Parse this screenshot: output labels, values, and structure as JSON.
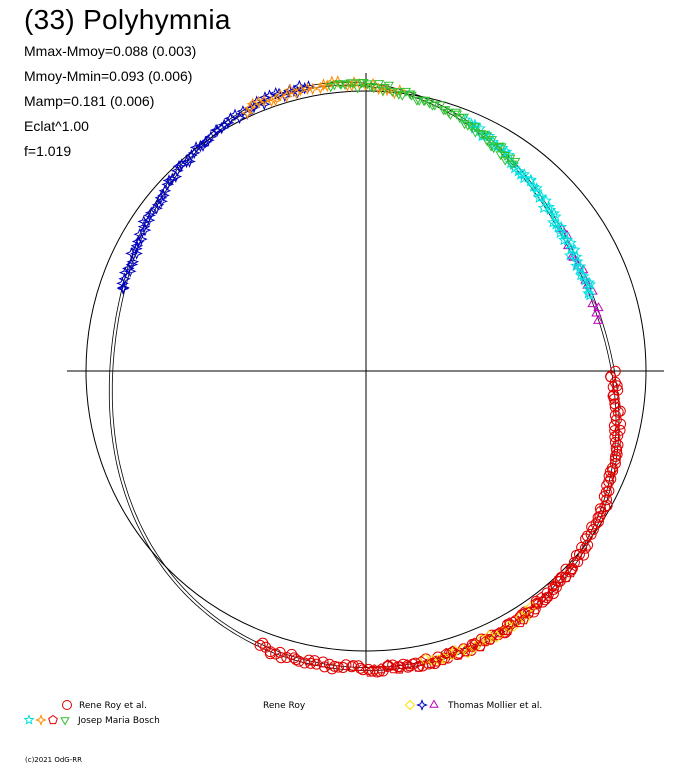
{
  "title": "(33) Polyhymnia",
  "stats": [
    "Mmax-Mmoy=0.088 (0.003)",
    "Mmoy-Mmin=0.093 (0.006)",
    "Mamp=0.181 (0.006)",
    "Eclat^1.00",
    "f=1.019"
  ],
  "legend": [
    {
      "label": "Rene Roy et al.",
      "symbols": [
        {
          "shape": "circle",
          "color": "#e00000"
        }
      ]
    },
    {
      "label": "Rene Roy",
      "symbols": []
    },
    {
      "label": "Thomas Mollier et al.",
      "symbols": [
        {
          "shape": "diamond",
          "color": "#ffe000"
        },
        {
          "shape": "star4",
          "color": "#0000c0"
        },
        {
          "shape": "triangle",
          "color": "#c000c0"
        }
      ]
    },
    {
      "label": "Josep Maria Bosch",
      "symbols": [
        {
          "shape": "star5",
          "color": "#00e0e0"
        },
        {
          "shape": "star4",
          "color": "#ff8c00"
        },
        {
          "shape": "pentagon",
          "color": "#e00000"
        },
        {
          "shape": "triangle-down",
          "color": "#30c030"
        }
      ]
    }
  ],
  "footer": "(c)2021 OdG-RR",
  "chart_data": {
    "type": "scatter",
    "title": "(33) Polyhymnia",
    "xlabel": "",
    "ylabel": "",
    "grid": false,
    "axes": "crosshair through center",
    "reference_circle": true,
    "legend_position": "bottom",
    "series": [
      {
        "name": "Rene Roy et al.",
        "marker": "circle",
        "color": "#e00000",
        "phase_range": [
          0.25,
          0.56
        ],
        "count": 160
      },
      {
        "name": "Thomas Mollier et al.",
        "marker": "diamond",
        "color": "#ffe000",
        "phase_range": [
          0.4,
          0.47
        ],
        "count": 20
      },
      {
        "name": "Thomas Mollier et al.",
        "marker": "star4",
        "color": "#0000c0",
        "phase_range": [
          0.8,
          0.97
        ],
        "count": 70
      },
      {
        "name": "Thomas Mollier et al.",
        "marker": "triangle",
        "color": "#c000c0",
        "phase_range": [
          0.15,
          0.22
        ],
        "count": 14
      },
      {
        "name": "Josep Maria Bosch",
        "marker": "star5",
        "color": "#00e0e0",
        "phase_range": [
          0.06,
          0.2
        ],
        "count": 60
      },
      {
        "name": "Josep Maria Bosch",
        "marker": "star4",
        "color": "#ff8c00",
        "phase_range": [
          0.93,
          0.02
        ],
        "count": 30
      },
      {
        "name": "Josep Maria Bosch",
        "marker": "pentagon",
        "color": "#e00000",
        "phase_range": [
          0.37,
          0.5
        ],
        "count": 40
      },
      {
        "name": "Josep Maria Bosch",
        "marker": "triangle-down",
        "color": "#30c030",
        "phase_range": [
          0.98,
          0.1
        ],
        "count": 60
      }
    ]
  }
}
